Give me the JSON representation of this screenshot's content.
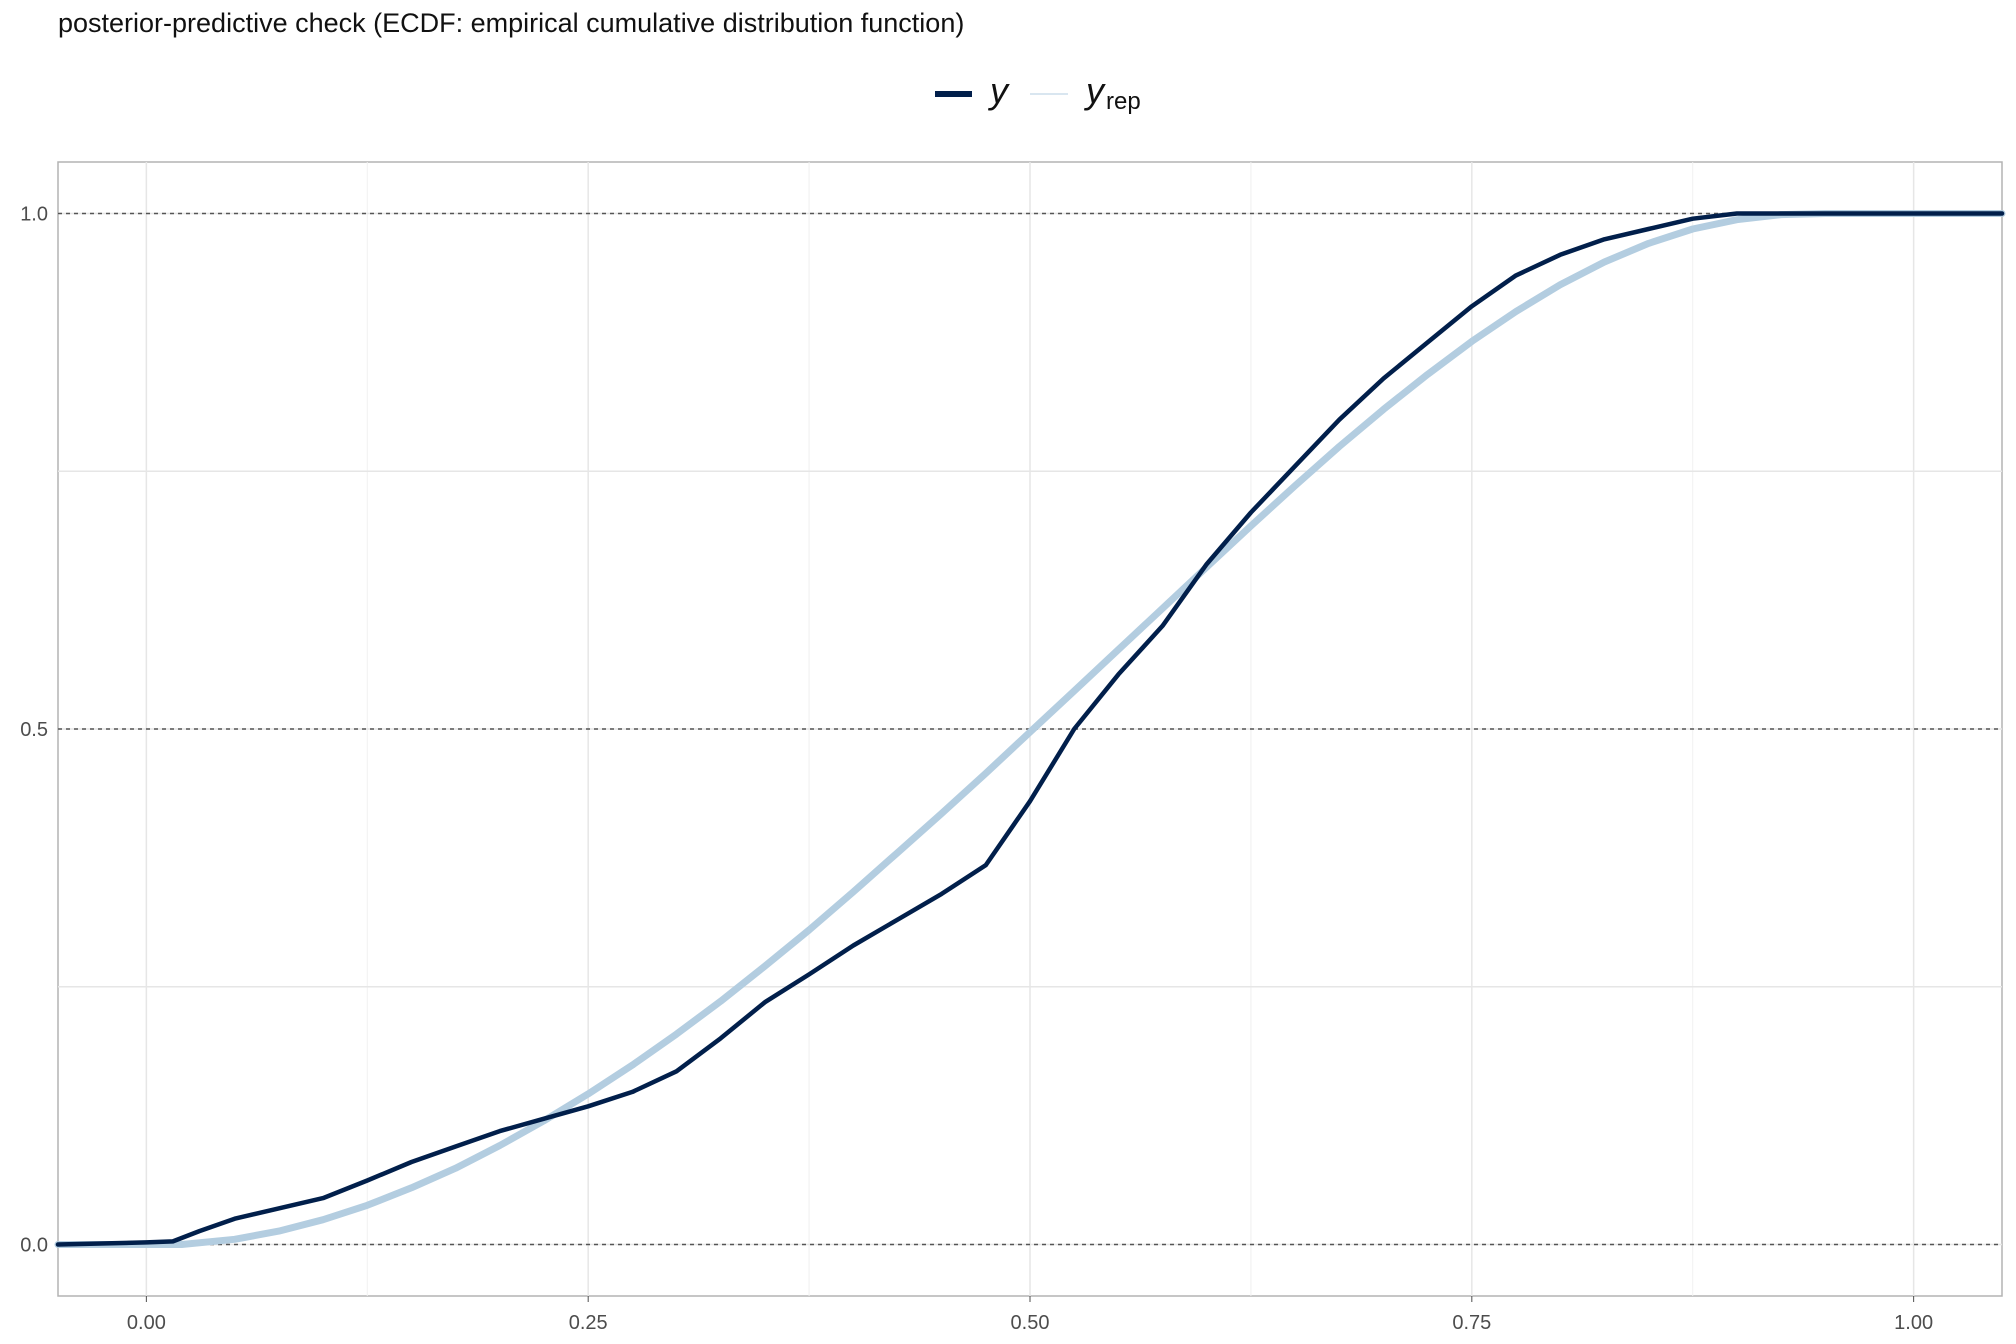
{
  "chart_data": {
    "type": "line",
    "title": "posterior-predictive check (ECDF: empirical cumulative distribution function)",
    "xlabel": "",
    "ylabel": "",
    "xlim": [
      -0.05,
      1.05
    ],
    "ylim": [
      -0.05,
      1.05
    ],
    "x_ticks": [
      0,
      0.25,
      0.5,
      0.75,
      1
    ],
    "x_tick_labels": [
      "0.00",
      "0.25",
      "0.50",
      "0.75",
      "1.00"
    ],
    "y_ticks": [
      0,
      0.5,
      1
    ],
    "y_tick_labels": [
      "0.0",
      "0.5",
      "1.0"
    ],
    "reference_lines_y": [
      0,
      0.5,
      1
    ],
    "grid": true,
    "legend_position": "top",
    "legend": {
      "y_label": "y",
      "yrep_label": "y",
      "yrep_subscript": "rep"
    },
    "series": [
      {
        "name": "y",
        "color": "#011f4b",
        "x": [
          -0.05,
          0.0,
          0.015,
          0.03,
          0.05,
          0.07,
          0.1,
          0.125,
          0.15,
          0.175,
          0.2,
          0.225,
          0.25,
          0.275,
          0.3,
          0.325,
          0.35,
          0.375,
          0.4,
          0.425,
          0.45,
          0.475,
          0.5,
          0.525,
          0.55,
          0.575,
          0.6,
          0.625,
          0.65,
          0.675,
          0.7,
          0.725,
          0.75,
          0.775,
          0.8,
          0.825,
          0.85,
          0.875,
          0.9,
          1.05
        ],
        "y": [
          0.0,
          0.002,
          0.003,
          0.013,
          0.025,
          0.033,
          0.045,
          0.062,
          0.08,
          0.095,
          0.11,
          0.122,
          0.134,
          0.148,
          0.168,
          0.2,
          0.235,
          0.262,
          0.29,
          0.315,
          0.34,
          0.368,
          0.43,
          0.5,
          0.553,
          0.6,
          0.66,
          0.71,
          0.755,
          0.8,
          0.84,
          0.875,
          0.91,
          0.94,
          0.96,
          0.975,
          0.985,
          0.995,
          1.0,
          1.0
        ]
      },
      {
        "name": "y rep",
        "color": "#b3cde0",
        "x": [
          -0.05,
          0.0,
          0.02,
          0.05,
          0.075,
          0.1,
          0.125,
          0.15,
          0.175,
          0.2,
          0.225,
          0.25,
          0.275,
          0.3,
          0.325,
          0.35,
          0.375,
          0.4,
          0.425,
          0.45,
          0.475,
          0.5,
          0.525,
          0.55,
          0.575,
          0.6,
          0.625,
          0.65,
          0.675,
          0.7,
          0.725,
          0.75,
          0.775,
          0.8,
          0.825,
          0.85,
          0.875,
          0.9,
          0.925,
          0.95,
          1.05
        ],
        "y": [
          0.0,
          0.0,
          0.0,
          0.005,
          0.013,
          0.024,
          0.038,
          0.055,
          0.074,
          0.096,
          0.12,
          0.146,
          0.174,
          0.204,
          0.236,
          0.27,
          0.305,
          0.342,
          0.38,
          0.418,
          0.457,
          0.497,
          0.537,
          0.577,
          0.617,
          0.657,
          0.697,
          0.736,
          0.774,
          0.81,
          0.844,
          0.876,
          0.905,
          0.931,
          0.953,
          0.971,
          0.985,
          0.994,
          0.999,
          1.0,
          1.0
        ]
      }
    ]
  }
}
